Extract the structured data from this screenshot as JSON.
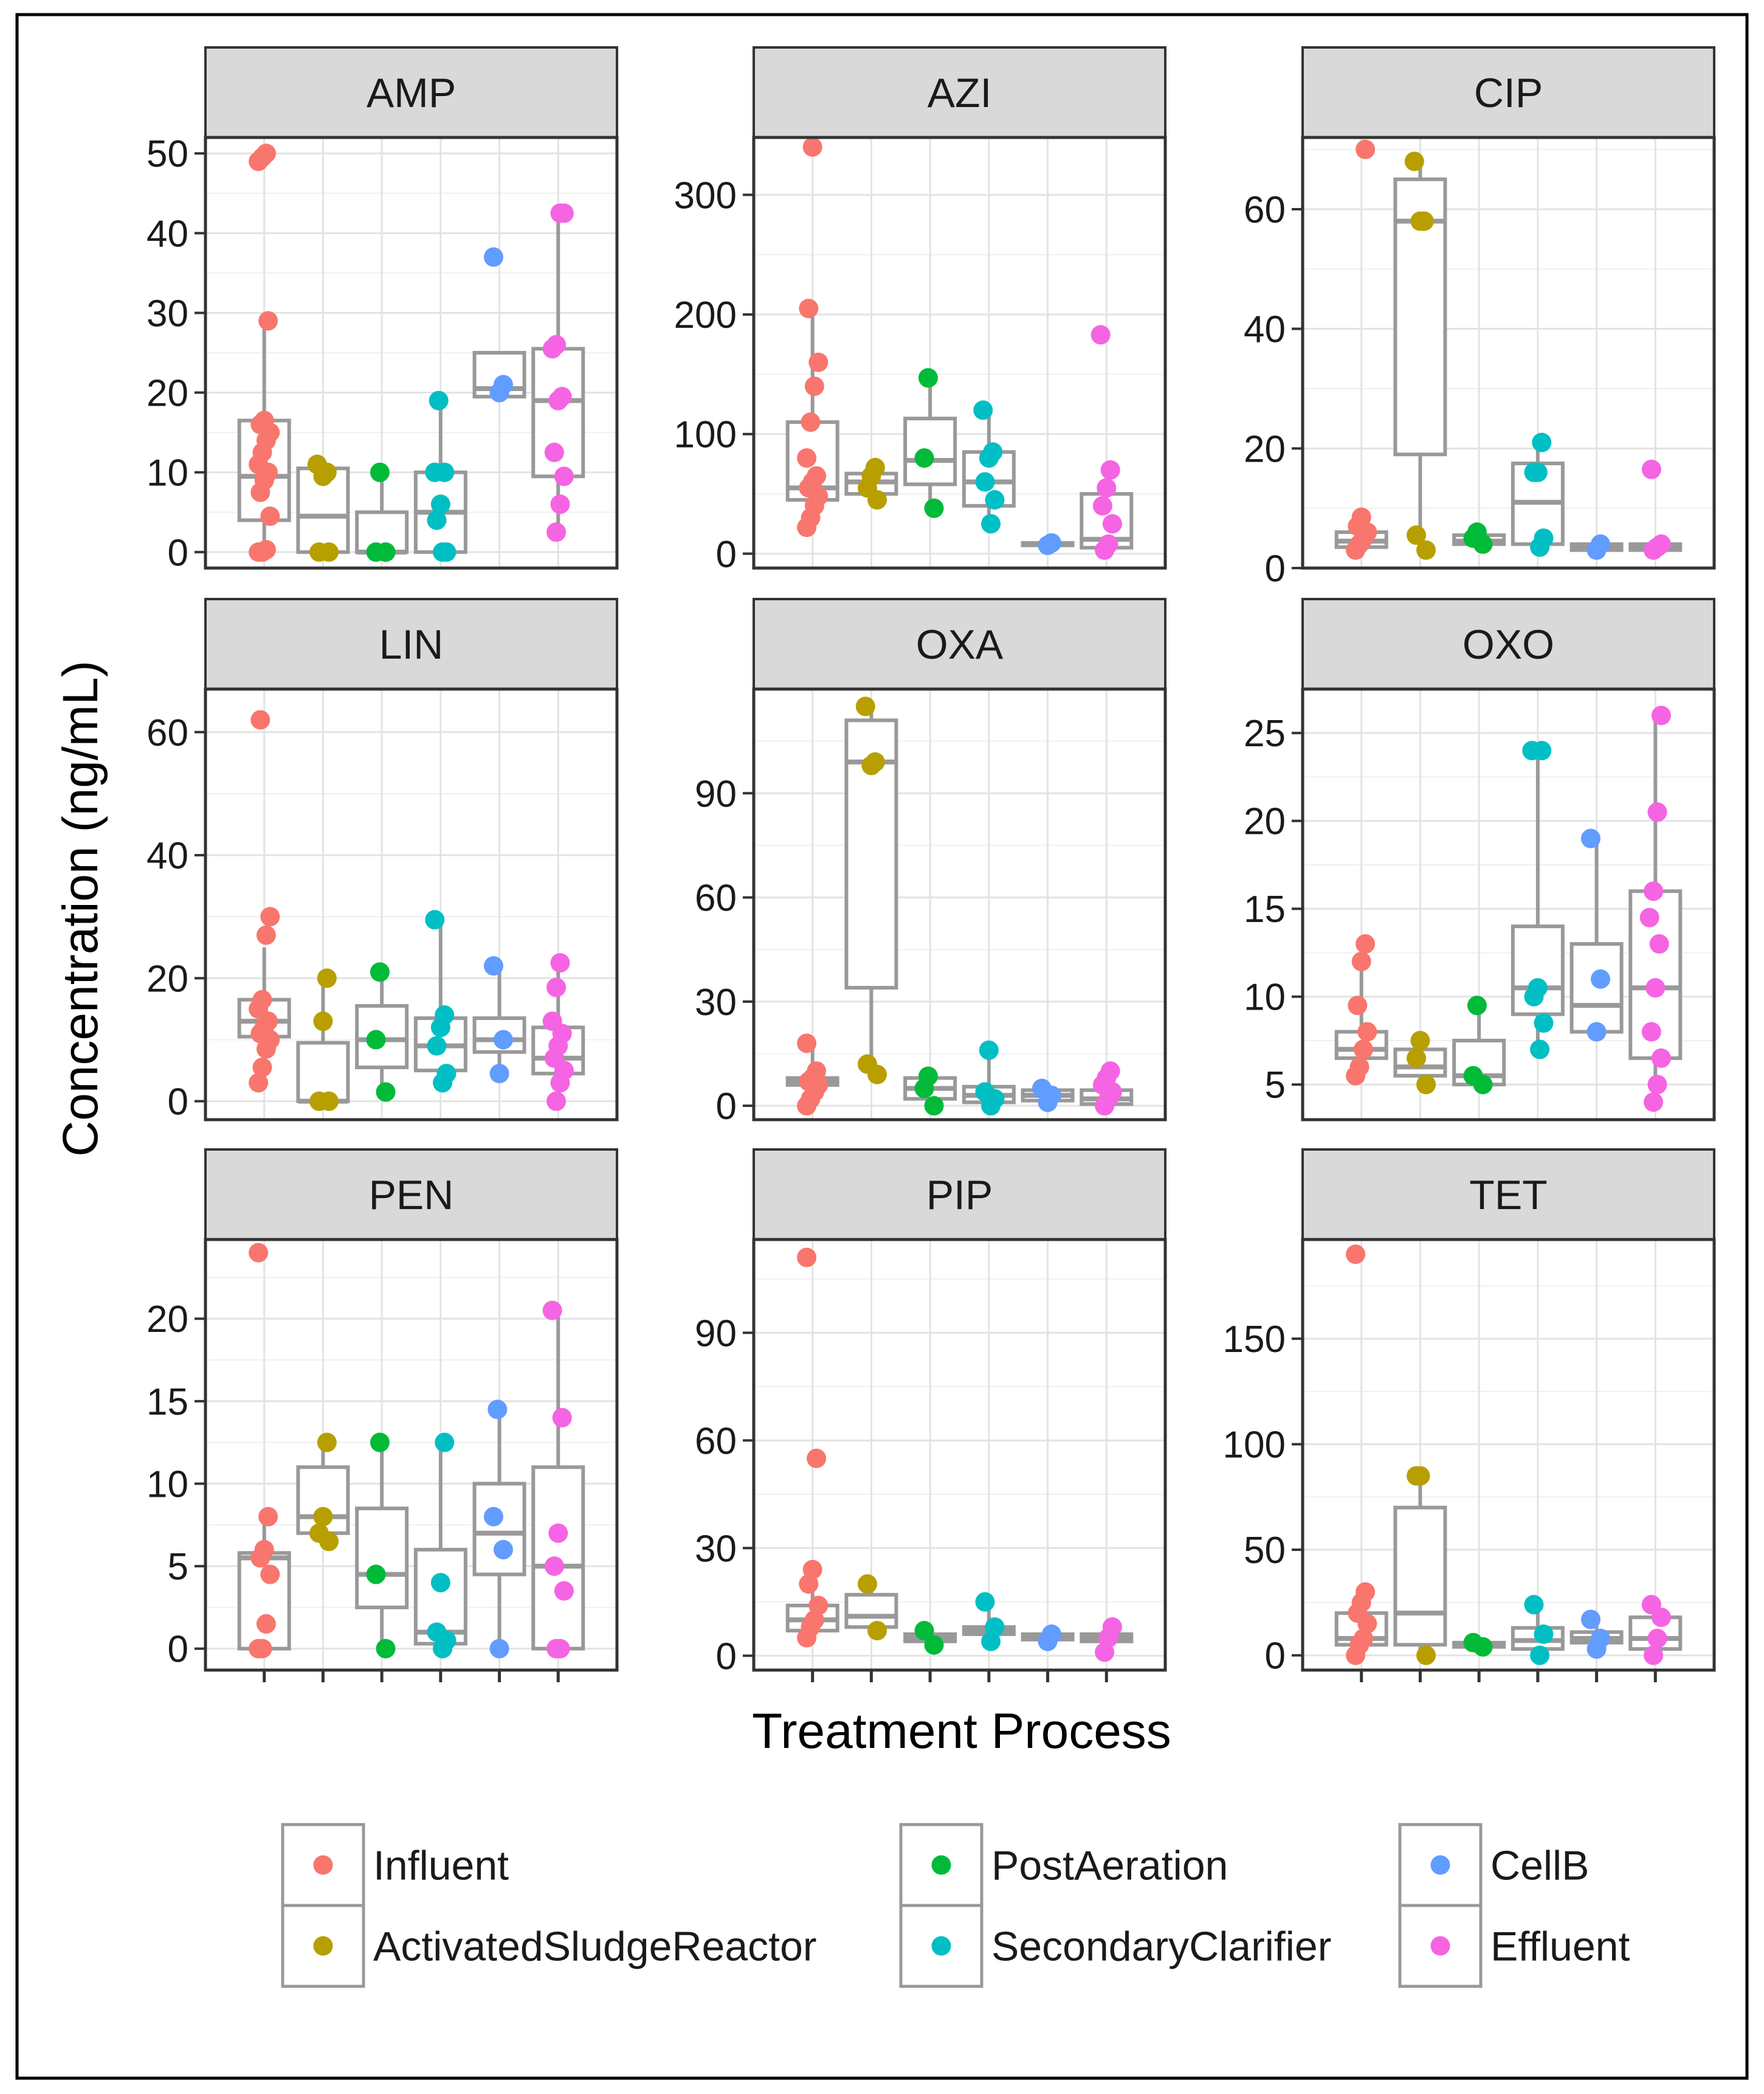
{
  "figure": {
    "ylabel": "Concentration (ng/mL)",
    "xlabel": "Treatment Process"
  },
  "legend": {
    "position": "bottom",
    "entries": [
      {
        "label": "Influent",
        "color": "#F8766D"
      },
      {
        "label": "ActivatedSludgeReactor",
        "color": "#B79F00"
      },
      {
        "label": "PostAeration",
        "color": "#00BA38"
      },
      {
        "label": "SecondaryClarifier",
        "color": "#00BFC4"
      },
      {
        "label": "CellB",
        "color": "#619CFF"
      },
      {
        "label": "Effluent",
        "color": "#F564E3"
      }
    ]
  },
  "chart_data": [
    {
      "type": "box+scatter",
      "title": "AMP",
      "ylim": [
        -2,
        52
      ],
      "yticks": [
        0,
        10,
        20,
        30,
        40,
        50
      ],
      "groups": [
        {
          "name": "Influent",
          "box": [
            0,
            4,
            9.5,
            16.5,
            29
          ],
          "points": [
            0,
            0,
            0.3,
            4.5,
            7.5,
            9,
            10,
            11,
            12.5,
            14,
            15,
            16,
            16.5,
            29,
            49,
            49.5,
            50
          ]
        },
        {
          "name": "ActivatedSludgeReactor",
          "box": [
            0,
            0,
            4.5,
            10.5,
            11
          ],
          "points": [
            0,
            0,
            9.5,
            10,
            11
          ]
        },
        {
          "name": "PostAeration",
          "box": [
            0,
            0,
            0,
            5,
            10
          ],
          "points": [
            0,
            0,
            10
          ]
        },
        {
          "name": "SecondaryClarifier",
          "box": [
            0,
            0,
            5,
            10,
            19
          ],
          "points": [
            0,
            0,
            4,
            6,
            10,
            10,
            19
          ]
        },
        {
          "name": "CellB",
          "box": [
            19.5,
            19.5,
            20.5,
            25,
            25
          ],
          "points": [
            20,
            21,
            37
          ]
        },
        {
          "name": "Effluent",
          "box": [
            2.5,
            9.5,
            19,
            25.5,
            42.5
          ],
          "points": [
            2.5,
            6,
            9.5,
            12.5,
            19,
            19.5,
            25.5,
            26,
            42.5,
            42.5
          ]
        }
      ]
    },
    {
      "type": "box+scatter",
      "title": "AZI",
      "ylim": [
        -12,
        348
      ],
      "yticks": [
        0,
        100,
        200,
        300
      ],
      "groups": [
        {
          "name": "Influent",
          "box": [
            20,
            45,
            55,
            110,
            205
          ],
          "points": [
            22,
            30,
            40,
            48,
            55,
            60,
            65,
            80,
            110,
            140,
            160,
            205,
            340
          ]
        },
        {
          "name": "ActivatedSludgeReactor",
          "box": [
            45,
            50,
            60,
            67,
            72
          ],
          "points": [
            45,
            55,
            65,
            72
          ]
        },
        {
          "name": "PostAeration",
          "box": [
            38,
            58,
            78,
            113,
            147
          ],
          "points": [
            38,
            80,
            147
          ]
        },
        {
          "name": "SecondaryClarifier",
          "box": [
            25,
            40,
            60,
            85,
            120
          ],
          "points": [
            25,
            45,
            60,
            80,
            85,
            120
          ]
        },
        {
          "name": "CellB",
          "box": [
            6,
            7,
            8,
            9,
            10
          ],
          "points": [
            7,
            9
          ]
        },
        {
          "name": "Effluent",
          "box": [
            3,
            5,
            12,
            50,
            68
          ],
          "points": [
            3,
            8,
            25,
            40,
            55,
            70,
            183
          ]
        }
      ]
    },
    {
      "type": "box+scatter",
      "title": "CIP",
      "ylim": [
        0,
        72
      ],
      "yticks": [
        0,
        20,
        40,
        60
      ],
      "groups": [
        {
          "name": "Influent",
          "box": [
            3,
            3.5,
            4.5,
            6,
            8.5
          ],
          "points": [
            3,
            4,
            5,
            6,
            7,
            8.5,
            70
          ]
        },
        {
          "name": "ActivatedSludgeReactor",
          "box": [
            3,
            19,
            58,
            65,
            68
          ],
          "points": [
            3,
            5.5,
            58,
            58,
            68
          ]
        },
        {
          "name": "PostAeration",
          "box": [
            4,
            4,
            4.5,
            5.5,
            6
          ],
          "points": [
            4,
            5,
            6
          ]
        },
        {
          "name": "SecondaryClarifier",
          "box": [
            3.5,
            4,
            11,
            17.5,
            21
          ],
          "points": [
            3.5,
            5,
            16,
            16,
            21
          ]
        },
        {
          "name": "CellB",
          "box": [
            3,
            3,
            3.5,
            4,
            4
          ],
          "points": [
            3,
            4
          ]
        },
        {
          "name": "Effluent",
          "box": [
            3,
            3,
            3.5,
            4,
            4.5
          ],
          "points": [
            3,
            3.5,
            4,
            16.5
          ]
        }
      ]
    },
    {
      "type": "box+scatter",
      "title": "LIN",
      "ylim": [
        -3,
        67
      ],
      "yticks": [
        0,
        20,
        40,
        60
      ],
      "groups": [
        {
          "name": "Influent",
          "box": [
            3,
            10.5,
            13,
            16.5,
            25
          ],
          "points": [
            3,
            5.5,
            8.5,
            10,
            11,
            12,
            13,
            15,
            16.5,
            27,
            30,
            62
          ]
        },
        {
          "name": "ActivatedSludgeReactor",
          "box": [
            0,
            0,
            0,
            9.5,
            20
          ],
          "points": [
            0,
            0,
            13,
            20
          ]
        },
        {
          "name": "PostAeration",
          "box": [
            1.5,
            5.5,
            10,
            15.5,
            21
          ],
          "points": [
            1.5,
            10,
            21
          ]
        },
        {
          "name": "SecondaryClarifier",
          "box": [
            3,
            5,
            9,
            13.5,
            29.5
          ],
          "points": [
            3,
            4.5,
            9,
            12,
            14,
            29.5
          ]
        },
        {
          "name": "CellB",
          "box": [
            4.5,
            8,
            10,
            13.5,
            22
          ],
          "points": [
            4.5,
            10,
            22
          ]
        },
        {
          "name": "Effluent",
          "box": [
            0,
            4.5,
            7,
            12,
            22.5
          ],
          "points": [
            0,
            3,
            5,
            7,
            9,
            11,
            13,
            18.5,
            22.5
          ]
        }
      ]
    },
    {
      "type": "box+scatter",
      "title": "OXA",
      "ylim": [
        -4,
        120
      ],
      "yticks": [
        0,
        30,
        60,
        90
      ],
      "groups": [
        {
          "name": "Influent",
          "box": [
            0,
            6,
            7,
            8,
            18
          ],
          "points": [
            0,
            2,
            4,
            6,
            7,
            8,
            10,
            18
          ]
        },
        {
          "name": "ActivatedSludgeReactor",
          "box": [
            9,
            34,
            99,
            111,
            115
          ],
          "points": [
            9,
            12,
            98,
            99,
            115
          ]
        },
        {
          "name": "PostAeration",
          "box": [
            0,
            2,
            5,
            8,
            8.5
          ],
          "points": [
            0,
            5,
            8.5
          ]
        },
        {
          "name": "SecondaryClarifier",
          "box": [
            0,
            1,
            3,
            5.5,
            16
          ],
          "points": [
            0,
            2,
            4,
            16
          ]
        },
        {
          "name": "CellB",
          "box": [
            1,
            1.5,
            3,
            4.5,
            5
          ],
          "points": [
            1,
            3,
            5
          ]
        },
        {
          "name": "Effluent",
          "box": [
            0,
            0.5,
            2,
            4.5,
            10
          ],
          "points": [
            0,
            2,
            4,
            6,
            8,
            10
          ]
        }
      ]
    },
    {
      "type": "box+scatter",
      "title": "OXO",
      "ylim": [
        3,
        27.5
      ],
      "yticks": [
        5,
        10,
        15,
        20,
        25
      ],
      "groups": [
        {
          "name": "Influent",
          "box": [
            5.5,
            6.5,
            7,
            8,
            13
          ],
          "points": [
            5.5,
            6,
            7,
            8,
            9.5,
            12,
            13
          ]
        },
        {
          "name": "ActivatedSludgeReactor",
          "box": [
            5,
            5.5,
            6,
            7,
            7.5
          ],
          "points": [
            5,
            6.5,
            7.5
          ]
        },
        {
          "name": "PostAeration",
          "box": [
            5,
            5,
            5.5,
            7.5,
            9.5
          ],
          "points": [
            5,
            5.5,
            9.5
          ]
        },
        {
          "name": "SecondaryClarifier",
          "box": [
            7,
            9,
            10.5,
            14,
            24
          ],
          "points": [
            7,
            8.5,
            10,
            10.5,
            24,
            24
          ]
        },
        {
          "name": "CellB",
          "box": [
            8,
            8,
            9.5,
            13,
            19
          ],
          "points": [
            8,
            11,
            19
          ]
        },
        {
          "name": "Effluent",
          "box": [
            4,
            6.5,
            10.5,
            16,
            26
          ],
          "points": [
            4,
            5,
            6.5,
            8,
            10.5,
            13,
            14.5,
            16,
            20.5,
            26
          ]
        }
      ]
    },
    {
      "type": "box+scatter",
      "title": "PEN",
      "ylim": [
        -1.3,
        24.8
      ],
      "yticks": [
        0,
        5,
        10,
        15,
        20
      ],
      "groups": [
        {
          "name": "Influent",
          "box": [
            0,
            0,
            5.5,
            5.8,
            8
          ],
          "points": [
            0,
            0,
            1.5,
            4.5,
            5.5,
            6,
            8,
            24
          ]
        },
        {
          "name": "ActivatedSludgeReactor",
          "box": [
            6.5,
            7,
            8,
            11,
            12.5
          ],
          "points": [
            6.5,
            7,
            8,
            12.5
          ]
        },
        {
          "name": "PostAeration",
          "box": [
            0,
            2.5,
            4.5,
            8.5,
            12.5
          ],
          "points": [
            0,
            4.5,
            12.5
          ]
        },
        {
          "name": "SecondaryClarifier",
          "box": [
            0,
            0.3,
            1,
            6,
            12.5
          ],
          "points": [
            0,
            0.5,
            1,
            4,
            12.5
          ]
        },
        {
          "name": "CellB",
          "box": [
            0,
            4.5,
            7,
            10,
            14.5
          ],
          "points": [
            0,
            6,
            8,
            14.5
          ]
        },
        {
          "name": "Effluent",
          "box": [
            0,
            0,
            5,
            11,
            20.5
          ],
          "points": [
            0,
            0,
            3.5,
            5,
            7,
            14,
            20.5
          ]
        }
      ]
    },
    {
      "type": "box+scatter",
      "title": "PIP",
      "ylim": [
        -4,
        116
      ],
      "yticks": [
        0,
        30,
        60,
        90
      ],
      "groups": [
        {
          "name": "Influent",
          "box": [
            5,
            7,
            10,
            14,
            24
          ],
          "points": [
            5,
            8,
            10,
            14,
            20,
            24,
            55,
            111
          ]
        },
        {
          "name": "ActivatedSludgeReactor",
          "box": [
            7,
            8,
            11,
            17,
            20
          ],
          "points": [
            7,
            20
          ]
        },
        {
          "name": "PostAeration",
          "box": [
            3,
            4,
            5,
            6,
            7
          ],
          "points": [
            3,
            7
          ]
        },
        {
          "name": "SecondaryClarifier",
          "box": [
            4,
            6,
            7,
            8,
            15
          ],
          "points": [
            4,
            8,
            15
          ]
        },
        {
          "name": "CellB",
          "box": [
            4,
            4.5,
            5,
            6,
            6
          ],
          "points": [
            4,
            6
          ]
        },
        {
          "name": "Effluent",
          "box": [
            1,
            4,
            5,
            6,
            8
          ],
          "points": [
            1,
            5,
            8
          ]
        }
      ]
    },
    {
      "type": "box+scatter",
      "title": "TET",
      "ylim": [
        -7,
        197
      ],
      "yticks": [
        0,
        50,
        100,
        150
      ],
      "groups": [
        {
          "name": "Influent",
          "box": [
            0,
            5,
            8,
            20,
            30
          ],
          "points": [
            0,
            5,
            8,
            15,
            20,
            25,
            30,
            190
          ]
        },
        {
          "name": "ActivatedSludgeReactor",
          "box": [
            0,
            5,
            20,
            70,
            85
          ],
          "points": [
            0,
            85,
            85
          ]
        },
        {
          "name": "PostAeration",
          "box": [
            3,
            4,
            5,
            6,
            7
          ],
          "points": [
            4,
            6
          ]
        },
        {
          "name": "SecondaryClarifier",
          "box": [
            0,
            3,
            7,
            13,
            24
          ],
          "points": [
            0,
            10,
            24
          ]
        },
        {
          "name": "CellB",
          "box": [
            3,
            6,
            8,
            11,
            17
          ],
          "points": [
            3,
            8,
            17
          ]
        },
        {
          "name": "Effluent",
          "box": [
            0,
            3,
            8,
            18,
            24
          ],
          "points": [
            0,
            8,
            18,
            24
          ]
        }
      ]
    }
  ]
}
